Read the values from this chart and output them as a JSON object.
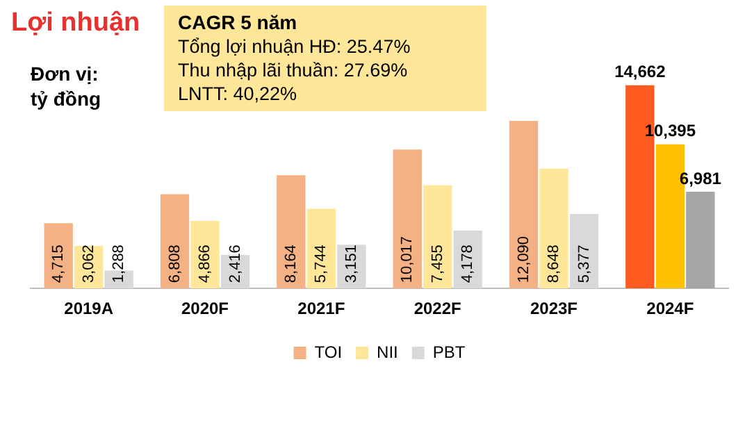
{
  "chart_data": {
    "type": "bar",
    "title": "Lợi nhuận",
    "subtitle": "Đơn vị:\ntỷ đồng",
    "annotations": [
      "CAGR 5 năm",
      "Tổng lợi nhuận HĐ: 25.47%",
      "Thu nhập lãi thuần: 27.69%",
      "LNTT:  40,22%"
    ],
    "categories": [
      "2019A",
      "2020F",
      "2021F",
      "2022F",
      "2023F",
      "2024F"
    ],
    "series": [
      {
        "name": "TOI",
        "color": "#f4b183",
        "colors": [
          "#f4b183",
          "#f4b183",
          "#f4b183",
          "#f4b183",
          "#f4b183",
          "#ff5a1f"
        ],
        "values": [
          4715,
          6808,
          8164,
          10017,
          12090,
          14662
        ],
        "value_labels": [
          "4,715",
          "6,808",
          "8,164",
          "10,017",
          "12,090",
          "14,662"
        ]
      },
      {
        "name": "NII",
        "color": "#ffe699",
        "colors": [
          "#ffe699",
          "#ffe699",
          "#ffe699",
          "#ffe699",
          "#ffe699",
          "#ffc000"
        ],
        "values": [
          3062,
          4866,
          5744,
          7455,
          8648,
          10395
        ],
        "value_labels": [
          "3,062",
          "4,866",
          "5,744",
          "7,455",
          "8,648",
          "10,395"
        ]
      },
      {
        "name": "PBT",
        "color": "#d9d9d9",
        "colors": [
          "#d9d9d9",
          "#d9d9d9",
          "#d9d9d9",
          "#d9d9d9",
          "#d9d9d9",
          "#a6a6a6"
        ],
        "values": [
          1288,
          2416,
          3151,
          4178,
          5377,
          6981
        ],
        "value_labels": [
          "1,288",
          "2,416",
          "3,151",
          "4,178",
          "5,377",
          "6,981"
        ]
      }
    ],
    "legend": "bottom",
    "grid": false
  }
}
